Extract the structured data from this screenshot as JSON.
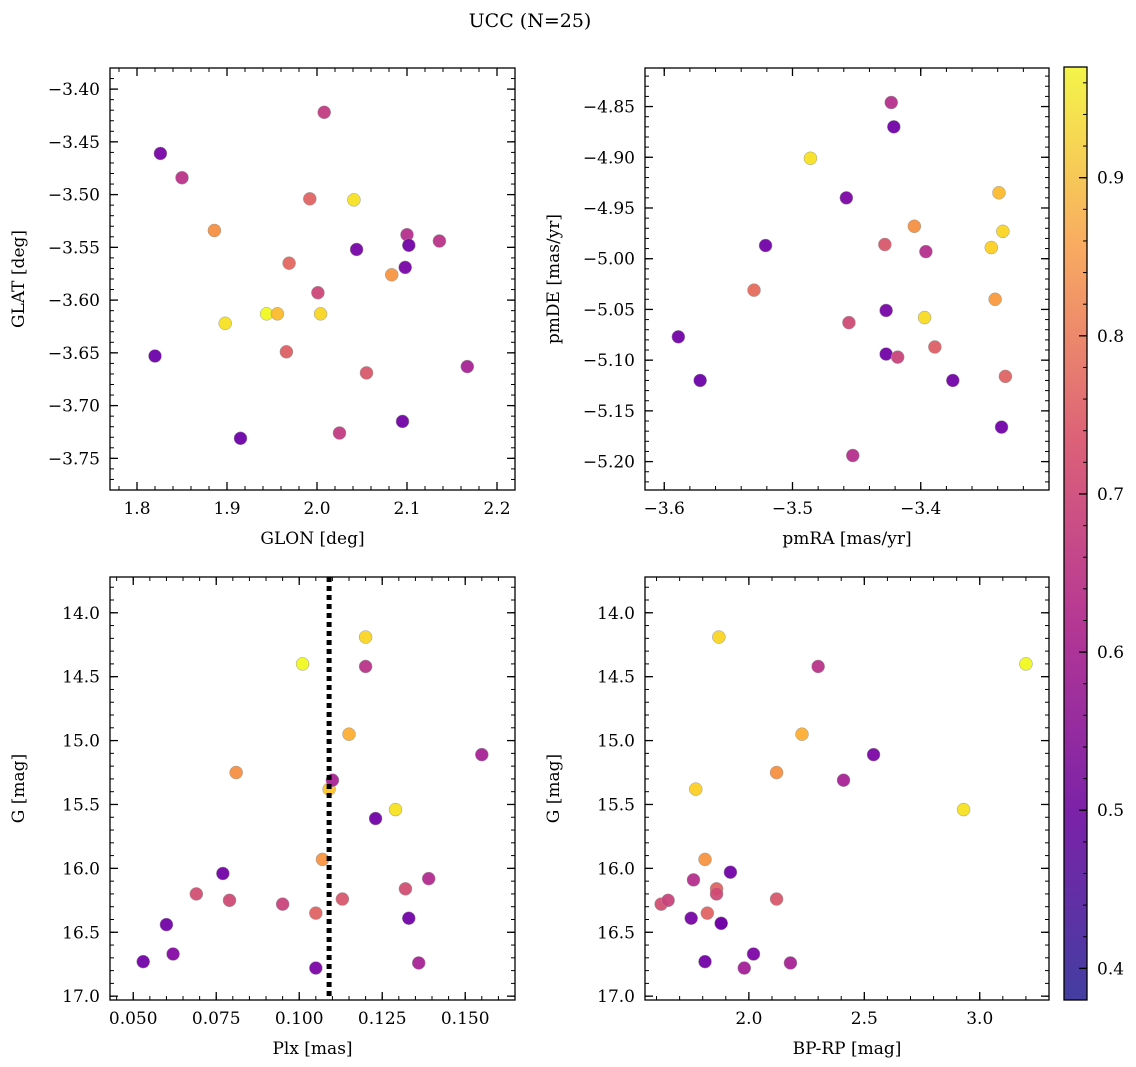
{
  "title": "UCC (N=25)",
  "colorbar": {
    "colormap": "plasma",
    "range": [
      0.38,
      0.97
    ],
    "ticks": [
      0.4,
      0.5,
      0.6,
      0.7,
      0.8,
      0.9
    ]
  },
  "chart_data": [
    {
      "type": "scatter",
      "xlabel": "GLON [deg]",
      "ylabel": "GLAT [deg]",
      "xlim": [
        1.77,
        2.22
      ],
      "ylim": [
        -3.78,
        -3.38
      ],
      "xticks": [
        1.8,
        1.9,
        2.0,
        2.1,
        2.2
      ],
      "xtick_labels": [
        "1.8",
        "1.9",
        "2.0",
        "2.1",
        "2.2"
      ],
      "yticks": [
        -3.4,
        -3.45,
        -3.5,
        -3.55,
        -3.6,
        -3.65,
        -3.7,
        -3.75
      ],
      "ytick_labels": [
        "−3.40",
        "−3.45",
        "−3.50",
        "−3.55",
        "−3.60",
        "−3.65",
        "−3.70",
        "−3.75"
      ],
      "x": [
        1.826,
        1.85,
        1.886,
        1.82,
        1.898,
        1.915,
        1.944,
        1.956,
        1.966,
        1.969,
        1.992,
        2.001,
        2.004,
        2.008,
        2.025,
        2.041,
        2.044,
        2.055,
        2.083,
        2.095,
        2.098,
        2.1,
        2.102,
        2.136,
        2.167
      ],
      "y": [
        -3.461,
        -3.484,
        -3.534,
        -3.653,
        -3.622,
        -3.731,
        -3.613,
        -3.613,
        -3.649,
        -3.565,
        -3.504,
        -3.593,
        -3.613,
        -3.422,
        -3.726,
        -3.505,
        -3.552,
        -3.669,
        -3.576,
        -3.715,
        -3.569,
        -3.538,
        -3.548,
        -3.544,
        -3.663
      ],
      "c": [
        0.42,
        0.56,
        0.78,
        0.4,
        0.93,
        0.4,
        0.97,
        0.86,
        0.67,
        0.69,
        0.68,
        0.61,
        0.91,
        0.58,
        0.58,
        0.93,
        0.42,
        0.65,
        0.79,
        0.41,
        0.42,
        0.55,
        0.41,
        0.56,
        0.52
      ]
    },
    {
      "type": "scatter",
      "xlabel": "pmRA [mas/yr]",
      "ylabel": "pmDE [mas/yr]",
      "xlim": [
        -3.615,
        -3.3
      ],
      "ylim": [
        -5.228,
        -4.812
      ],
      "xticks": [
        -3.6,
        -3.5,
        -3.4
      ],
      "xtick_labels": [
        "−3.6",
        "−3.5",
        "−3.4"
      ],
      "yticks": [
        -4.85,
        -4.9,
        -4.95,
        -5.0,
        -5.05,
        -5.1,
        -5.15,
        -5.2
      ],
      "ytick_labels": [
        "−4.85",
        "−4.90",
        "−4.95",
        "−5.00",
        "−5.05",
        "−5.10",
        "−5.15",
        "−5.20"
      ],
      "x": [
        -3.589,
        -3.572,
        -3.53,
        -3.521,
        -3.486,
        -3.458,
        -3.456,
        -3.453,
        -3.428,
        -3.427,
        -3.427,
        -3.423,
        -3.421,
        -3.418,
        -3.405,
        -3.397,
        -3.396,
        -3.389,
        -3.375,
        -3.345,
        -3.342,
        -3.339,
        -3.337,
        -3.336,
        -3.334
      ],
      "y": [
        -5.077,
        -5.12,
        -5.031,
        -4.987,
        -4.901,
        -4.94,
        -5.063,
        -5.194,
        -4.986,
        -5.094,
        -5.051,
        -4.846,
        -4.87,
        -5.097,
        -4.968,
        -5.058,
        -4.993,
        -5.087,
        -5.12,
        -4.989,
        -5.04,
        -4.935,
        -5.166,
        -4.973,
        -5.116
      ],
      "c": [
        0.41,
        0.4,
        0.7,
        0.41,
        0.93,
        0.43,
        0.62,
        0.55,
        0.65,
        0.41,
        0.42,
        0.55,
        0.41,
        0.6,
        0.78,
        0.92,
        0.55,
        0.67,
        0.41,
        0.9,
        0.8,
        0.86,
        0.41,
        0.91,
        0.68
      ]
    },
    {
      "type": "scatter",
      "xlabel": "Plx [mas]",
      "ylabel": "G [mag]",
      "xlim": [
        0.043,
        0.165
      ],
      "ylim": [
        17.03,
        13.72
      ],
      "xticks": [
        0.05,
        0.075,
        0.1,
        0.125,
        0.15
      ],
      "xtick_labels": [
        "0.050",
        "0.075",
        "0.100",
        "0.125",
        "0.150"
      ],
      "yticks": [
        14.0,
        14.5,
        15.0,
        15.5,
        16.0,
        16.5,
        17.0
      ],
      "ytick_labels": [
        "14.0",
        "14.5",
        "15.0",
        "15.5",
        "16.0",
        "16.5",
        "17.0"
      ],
      "vline": 0.109,
      "x": [
        0.053,
        0.06,
        0.062,
        0.069,
        0.077,
        0.079,
        0.081,
        0.095,
        0.101,
        0.105,
        0.105,
        0.107,
        0.109,
        0.11,
        0.113,
        0.115,
        0.12,
        0.12,
        0.123,
        0.129,
        0.132,
        0.133,
        0.136,
        0.139,
        0.155
      ],
      "y": [
        16.73,
        16.44,
        16.67,
        16.2,
        16.04,
        16.25,
        15.25,
        16.28,
        14.4,
        16.35,
        16.78,
        15.93,
        15.38,
        15.31,
        16.24,
        14.95,
        14.19,
        14.42,
        15.61,
        15.54,
        16.16,
        16.39,
        16.74,
        16.08,
        15.11
      ],
      "c": [
        0.41,
        0.41,
        0.45,
        0.63,
        0.41,
        0.62,
        0.78,
        0.6,
        0.97,
        0.68,
        0.43,
        0.79,
        0.88,
        0.52,
        0.65,
        0.84,
        0.91,
        0.56,
        0.41,
        0.93,
        0.63,
        0.41,
        0.52,
        0.54,
        0.52
      ]
    },
    {
      "type": "scatter",
      "xlabel": "BP-RP [mag]",
      "ylabel": "G [mag]",
      "xlim": [
        1.55,
        3.3
      ],
      "ylim": [
        17.03,
        13.72
      ],
      "xticks": [
        2.0,
        2.5,
        3.0
      ],
      "xtick_labels": [
        "2.0",
        "2.5",
        "3.0"
      ],
      "yticks": [
        14.0,
        14.5,
        15.0,
        15.5,
        16.0,
        16.5,
        17.0
      ],
      "ytick_labels": [
        "14.0",
        "14.5",
        "15.0",
        "15.5",
        "16.0",
        "16.5",
        "17.0"
      ],
      "x": [
        1.62,
        1.65,
        1.75,
        1.76,
        1.77,
        1.81,
        1.81,
        1.82,
        1.86,
        1.86,
        1.87,
        1.88,
        1.88,
        1.92,
        1.98,
        2.02,
        2.12,
        2.12,
        2.18,
        2.23,
        2.3,
        2.41,
        2.54,
        2.93,
        3.2
      ],
      "y": [
        16.28,
        16.25,
        16.39,
        16.09,
        15.38,
        15.93,
        16.73,
        16.35,
        16.16,
        16.2,
        14.19,
        16.43,
        16.43,
        16.03,
        16.78,
        16.67,
        15.25,
        16.24,
        16.74,
        14.95,
        14.42,
        15.31,
        15.11,
        15.54,
        14.4
      ],
      "c": [
        0.63,
        0.6,
        0.42,
        0.55,
        0.9,
        0.79,
        0.41,
        0.68,
        0.68,
        0.62,
        0.91,
        0.41,
        0.41,
        0.41,
        0.51,
        0.43,
        0.78,
        0.65,
        0.52,
        0.84,
        0.56,
        0.52,
        0.43,
        0.93,
        0.97
      ]
    }
  ]
}
